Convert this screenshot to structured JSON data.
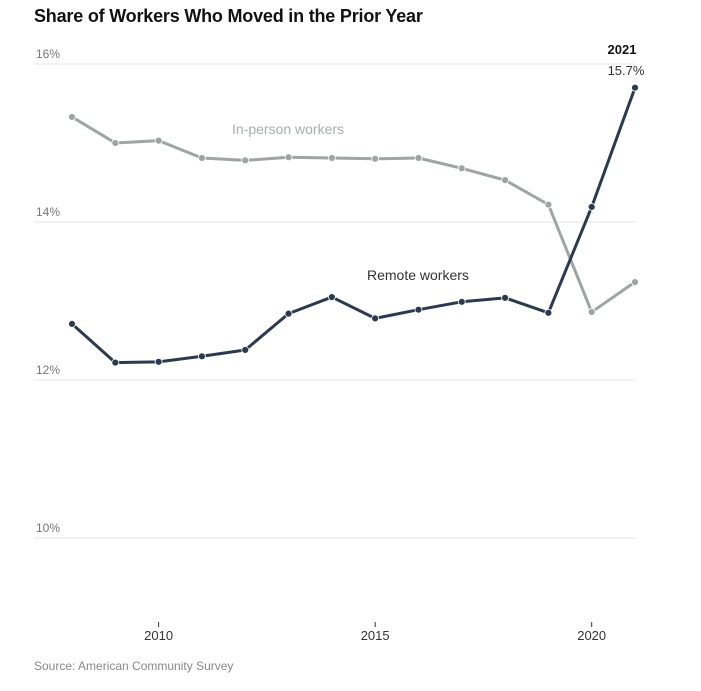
{
  "chart_data": {
    "type": "line",
    "title": "Share of Workers Who Moved in the Prior Year",
    "source": "Source: American Community Survey",
    "xlabel": "",
    "ylabel": "",
    "x": [
      2008,
      2009,
      2010,
      2011,
      2012,
      2013,
      2014,
      2015,
      2016,
      2017,
      2018,
      2019,
      2020,
      2021
    ],
    "xlim": [
      2008,
      2021
    ],
    "ylim": [
      9.3,
      16
    ],
    "x_ticks": [
      2010,
      2015,
      2020
    ],
    "x_tick_labels": [
      "2010",
      "2015",
      "2020"
    ],
    "y_ticks": [
      10,
      12,
      14,
      16
    ],
    "y_tick_labels": [
      "10%",
      "12%",
      "14%",
      "16%"
    ],
    "grid": true,
    "legend": "inline labels",
    "series": [
      {
        "name": "In-person workers",
        "color": "#9ea5a2",
        "values": [
          15.33,
          15.0,
          15.03,
          14.81,
          14.78,
          14.82,
          14.81,
          14.8,
          14.81,
          14.68,
          14.53,
          14.22,
          12.86,
          13.24
        ]
      },
      {
        "name": "Remote workers",
        "color": "#2c3a4d",
        "values": [
          12.71,
          12.22,
          12.23,
          12.3,
          12.38,
          12.84,
          13.05,
          12.78,
          12.89,
          12.99,
          13.04,
          12.85,
          14.19,
          15.7
        ]
      }
    ],
    "annotations": [
      {
        "year_label": "2021",
        "value_label": "15.7%",
        "x": 2021,
        "y": 15.7
      }
    ]
  }
}
